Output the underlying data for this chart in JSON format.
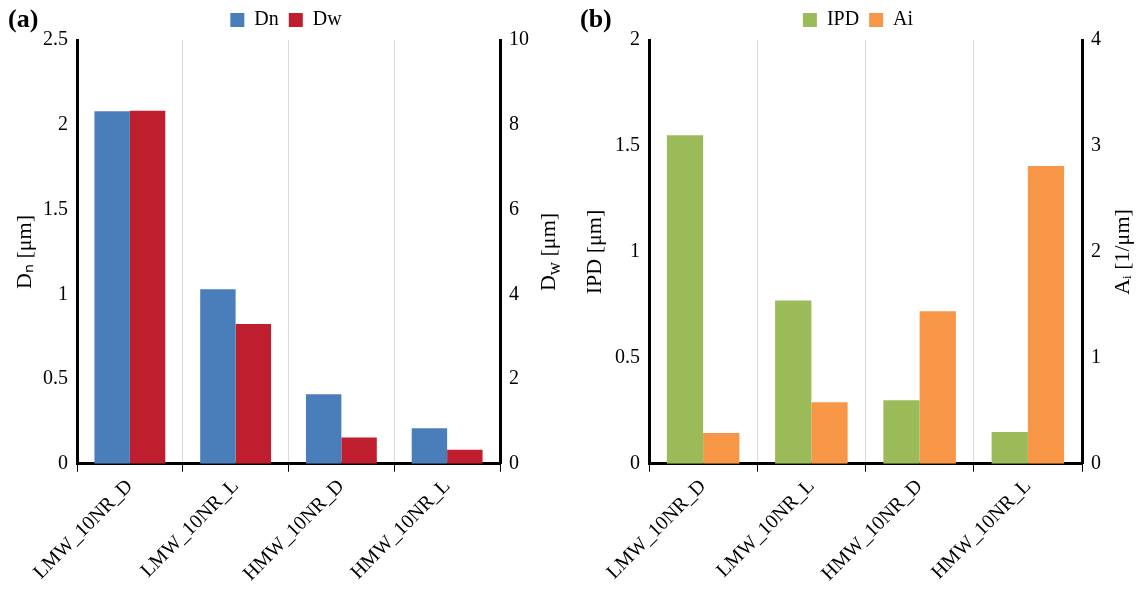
{
  "chart_data": [
    {
      "type": "bar",
      "title": "(a)",
      "ylabel": "Dₙ [μm]",
      "y2label": "D$_{w}$ [μm]",
      "categories": [
        "LMW_10NR_D",
        "LMW_10NR_L",
        "HMW_10NR_D",
        "HMW_10NR_L"
      ],
      "series": [
        {
          "name": "Dn",
          "color": "#4a7ebb",
          "values": [
            2.08,
            1.03,
            0.41,
            0.21
          ]
        },
        {
          "name": "Dw",
          "color": "#be1e2d",
          "values": [
            8.33,
            3.3,
            0.62,
            0.33
          ],
          "axis": "y2"
        }
      ],
      "ylim": [
        0,
        2.5
      ],
      "yticks": [
        0,
        0.5,
        1,
        1.5,
        2,
        2.5
      ],
      "y2lim": [
        0,
        10
      ],
      "y2ticks": [
        0,
        2,
        4,
        6,
        8,
        10
      ],
      "grid": "x",
      "legend": "top"
    },
    {
      "type": "bar",
      "title": "(b)",
      "ylabel": "IPD [μm]",
      "y2label": "Aᵢ [1/μm]",
      "categories": [
        "LMW_10NR_D",
        "LMW_10NR_L",
        "HMW_10NR_D",
        "HMW_10NR_L"
      ],
      "series": [
        {
          "name": "IPD",
          "color": "#9bbb59",
          "values": [
            1.55,
            0.77,
            0.3,
            0.15
          ]
        },
        {
          "name": "Ai",
          "color": "#f79646",
          "values": [
            0.29,
            0.58,
            1.44,
            2.81
          ],
          "axis": "y2"
        }
      ],
      "ylim": [
        0,
        2
      ],
      "yticks": [
        0,
        0.5,
        1,
        1.5,
        2
      ],
      "y2lim": [
        0,
        4
      ],
      "y2ticks": [
        0,
        1,
        2,
        3,
        4
      ],
      "grid": "x",
      "legend": "top"
    }
  ]
}
